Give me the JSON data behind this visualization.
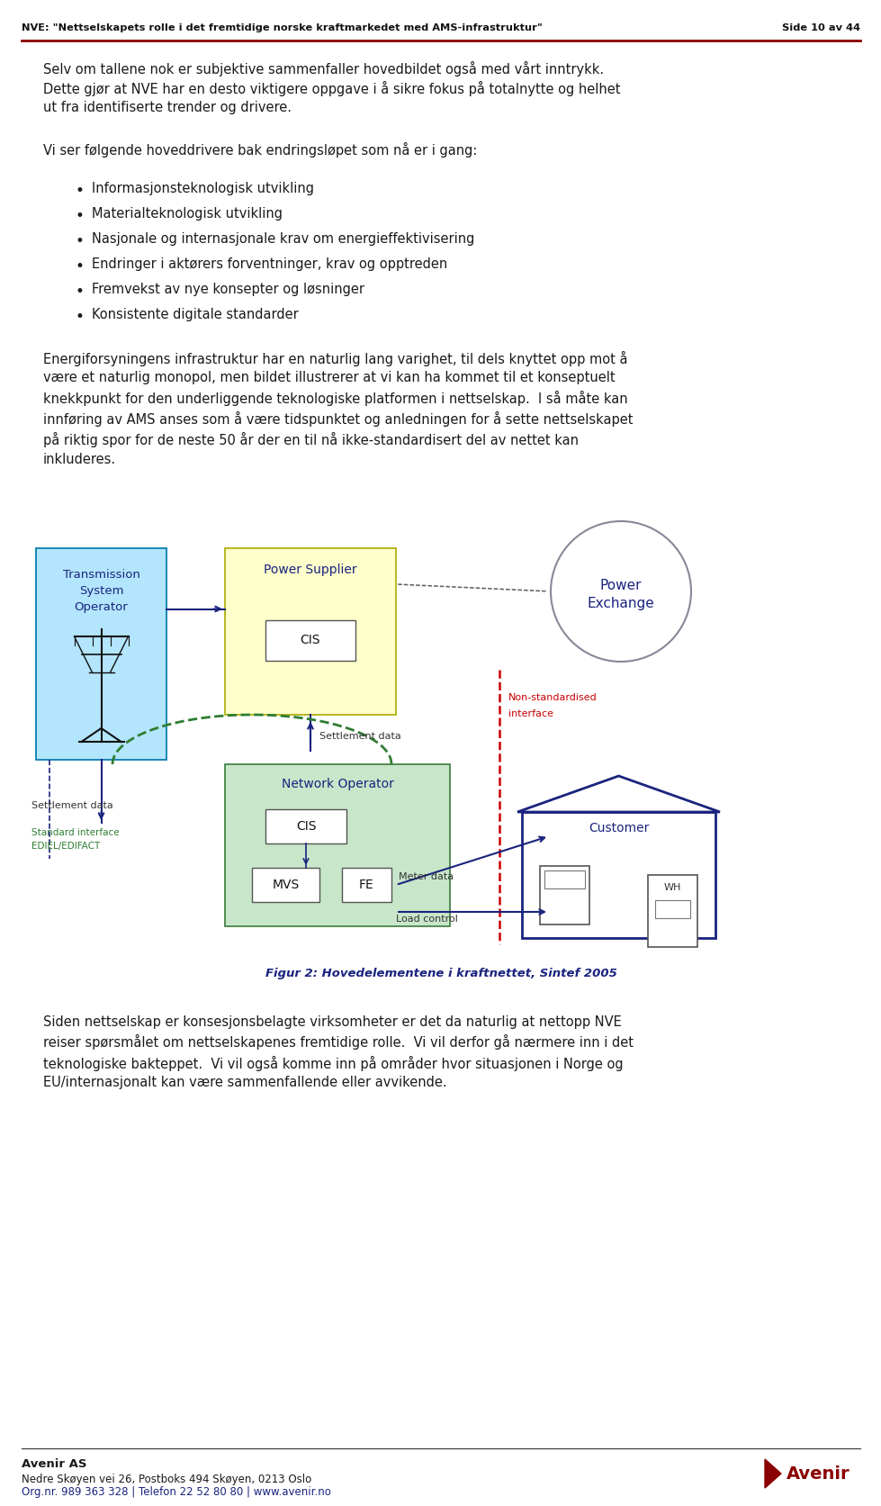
{
  "header_left": "NVE: \"Nettselskapets rolle i det fremtidige norske kraftmarkedet med AMS-infrastruktur\"",
  "header_right": "Side 10 av 44",
  "header_line_color": "#8B0000",
  "para1": "Selv om tallene nok er subjektive sammenfaller hovedbildet også med vårt inntrykk.",
  "para2": "Dette gjør at NVE har en desto viktigere oppgave i å sikre fokus på totalnytte og helhet\nut fra identifiserte trender og drivere.",
  "para3": "Vi ser følgende hoveddrivere bak endringsløpet som nå er i gang:",
  "bullets": [
    "Informasjonsteknologisk utvikling",
    "Materialteknologisk utvikling",
    "Nasjonale og internasjonale krav om energieffektivisering",
    "Endringer i aktørers forventninger, krav og opptreden",
    "Fremvekst av nye konsepter og løsninger",
    "Konsistente digitale standarder"
  ],
  "para4": "Energiforsyningens infrastruktur har en naturlig lang varighet, til dels knyttet opp mot å\nvære et naturlig monopol, men bildet illustrerer at vi kan ha kommet til et konseptuelt\nknekkpunkt for den underliggende teknologiske platformen i nettselskap.  I så måte kan\ninnføring av AMS anses som å være tidspunktet og anledningen for å sette nettselskapet\npå riktig spor for de neste 50 år der en til nå ikke-standardisert del av nettet kan\ninkluderes.",
  "fig_caption": "Figur 2: Hovedelementene i kraftnettet, Sintef 2005",
  "para5": "Siden nettselskap er konsesjonsbelagte virksomheter er det da naturlig at nettopp NVE\nreiser spørsmålet om nettselskapenes fremtidige rolle.  Vi vil derfor gå nærmere inn i det\nteknologiske bakteppet.  Vi vil også komme inn på områder hvor situasjonen i Norge og\nEU/internasjonalt kan være sammenfallende eller avvikende.",
  "footer_company": "Avenir AS",
  "footer_addr1": "Nedre Skøyen vei 26, Postboks 494 Skøyen, 0213 Oslo",
  "footer_addr2": "Org.nr. 989 363 328 | Telefon 22 52 80 80 | www.avenir.no",
  "bg_color": "#ffffff",
  "text_color": "#1a1a1a",
  "navy": "#1a237e",
  "dark_red": "#8B0000",
  "box_border_color": "#555577",
  "dashed_green": "#2e7d32",
  "red_dashed": "#cc0000",
  "tso_fill": "#b3e5fc",
  "ps_fill": "#ffffcc",
  "no_fill": "#c8e6c9",
  "cis_fill": "#ffffff",
  "cust_border": "#1a237e",
  "pe_border": "#888899",
  "caption_color": "#1a237e",
  "label_color": "#cc0000"
}
